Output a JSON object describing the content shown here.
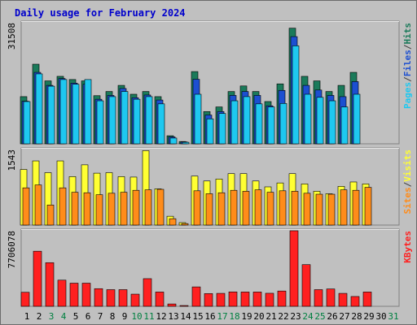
{
  "chart_data": {
    "type": "bar",
    "title": "Daily usage for February 2024",
    "colors": {
      "hits": "#1a7a5a",
      "files": "#1c4fd1",
      "pages": "#1ec8f0",
      "visits": "#ffff33",
      "sites": "#ff8c1a",
      "kbytes": "#ff2020",
      "title": "#0000cc",
      "weekend_label": "#008040",
      "panel_bg": "#c0c0c0"
    },
    "days": [
      "1",
      "2",
      "3",
      "4",
      "5",
      "6",
      "7",
      "8",
      "9",
      "10",
      "11",
      "12",
      "13",
      "14",
      "15",
      "16",
      "17",
      "18",
      "19",
      "20",
      "21",
      "22",
      "23",
      "24",
      "25",
      "26",
      "27",
      "28",
      "29",
      "30",
      "31"
    ],
    "weekend_days": [
      "3",
      "4",
      "10",
      "11",
      "17",
      "18",
      "24",
      "25",
      "31"
    ],
    "panels": [
      {
        "name": "hits-files-pages",
        "max_label": "31508",
        "ymax": 31508,
        "legend": [
          "Pages",
          "/",
          "Files",
          "/",
          "Hits"
        ],
        "legend_colors": [
          "#1ec8f0",
          "#404040",
          "#1c4fd1",
          "#404040",
          "#1a7a5a"
        ],
        "series": [
          {
            "name": "Hits",
            "values": [
              12280,
              20720,
              16380,
              17560,
              16730,
              16380,
              12530,
              13620,
              15210,
              12900,
              13620,
              12280,
              2100,
              600,
              18800,
              8400,
              9600,
              13610,
              15060,
              13620,
              11000,
              15600,
              30100,
              17560,
              16380,
              13620,
              15210,
              18600,
              0
            ]
          },
          {
            "name": "Files",
            "values": [
              11100,
              18600,
              15210,
              17000,
              15800,
              15500,
              11600,
              12600,
              14400,
              12000,
              12700,
              11400,
              1800,
              500,
              16800,
              7500,
              8400,
              12600,
              13620,
              12600,
              9900,
              13900,
              27900,
              15210,
              14000,
              12600,
              12280,
              16200,
              0
            ]
          },
          {
            "name": "Pages",
            "values": [
              11000,
              18200,
              15000,
              16730,
              15500,
              16730,
              11200,
              12280,
              13620,
              11600,
              12280,
              10400,
              1500,
              400,
              12900,
              6500,
              7900,
              11200,
              12280,
              10400,
              9600,
              10500,
              25500,
              12900,
              12100,
              11200,
              9600,
              12900,
              0
            ]
          }
        ]
      },
      {
        "name": "visits-sites",
        "max_label": "1543",
        "ymax": 1543,
        "legend": [
          "Sites",
          "/",
          "Visits"
        ],
        "legend_colors": [
          "#ff8c1a",
          "#404040",
          "#ffff33"
        ],
        "series": [
          {
            "name": "Visits",
            "values": [
              1135,
              1310,
              1070,
              1310,
              990,
              1230,
              1060,
              1070,
              990,
              980,
              1520,
              740,
              180,
              50,
              1000,
              900,
              940,
              1050,
              1050,
              900,
              780,
              860,
              1050,
              840,
              690,
              640,
              790,
              880,
              840
            ]
          },
          {
            "name": "Sites",
            "values": [
              760,
              820,
              410,
              760,
              670,
              660,
              620,
              650,
              670,
              710,
              720,
              730,
              130,
              30,
              700,
              640,
              660,
              710,
              690,
              720,
              670,
              700,
              690,
              650,
              630,
              630,
              720,
              710,
              770
            ]
          }
        ]
      },
      {
        "name": "kbytes",
        "max_label": "7706078",
        "ymax": 7706078,
        "legend": [
          "KBytes"
        ],
        "legend_colors": [
          "#ff2020"
        ],
        "series": [
          {
            "name": "KBytes",
            "values": [
              1430000,
              5620000,
              4450000,
              2670000,
              2360000,
              2360000,
              1800000,
              1700000,
              1700000,
              1240000,
              2820000,
              1460000,
              240000,
              80000,
              1980000,
              1300000,
              1320000,
              1470000,
              1460000,
              1460000,
              1330000,
              1560000,
              7706078,
              4250000,
              1700000,
              1770000,
              1320000,
              1000000,
              1460000
            ]
          }
        ]
      }
    ]
  }
}
